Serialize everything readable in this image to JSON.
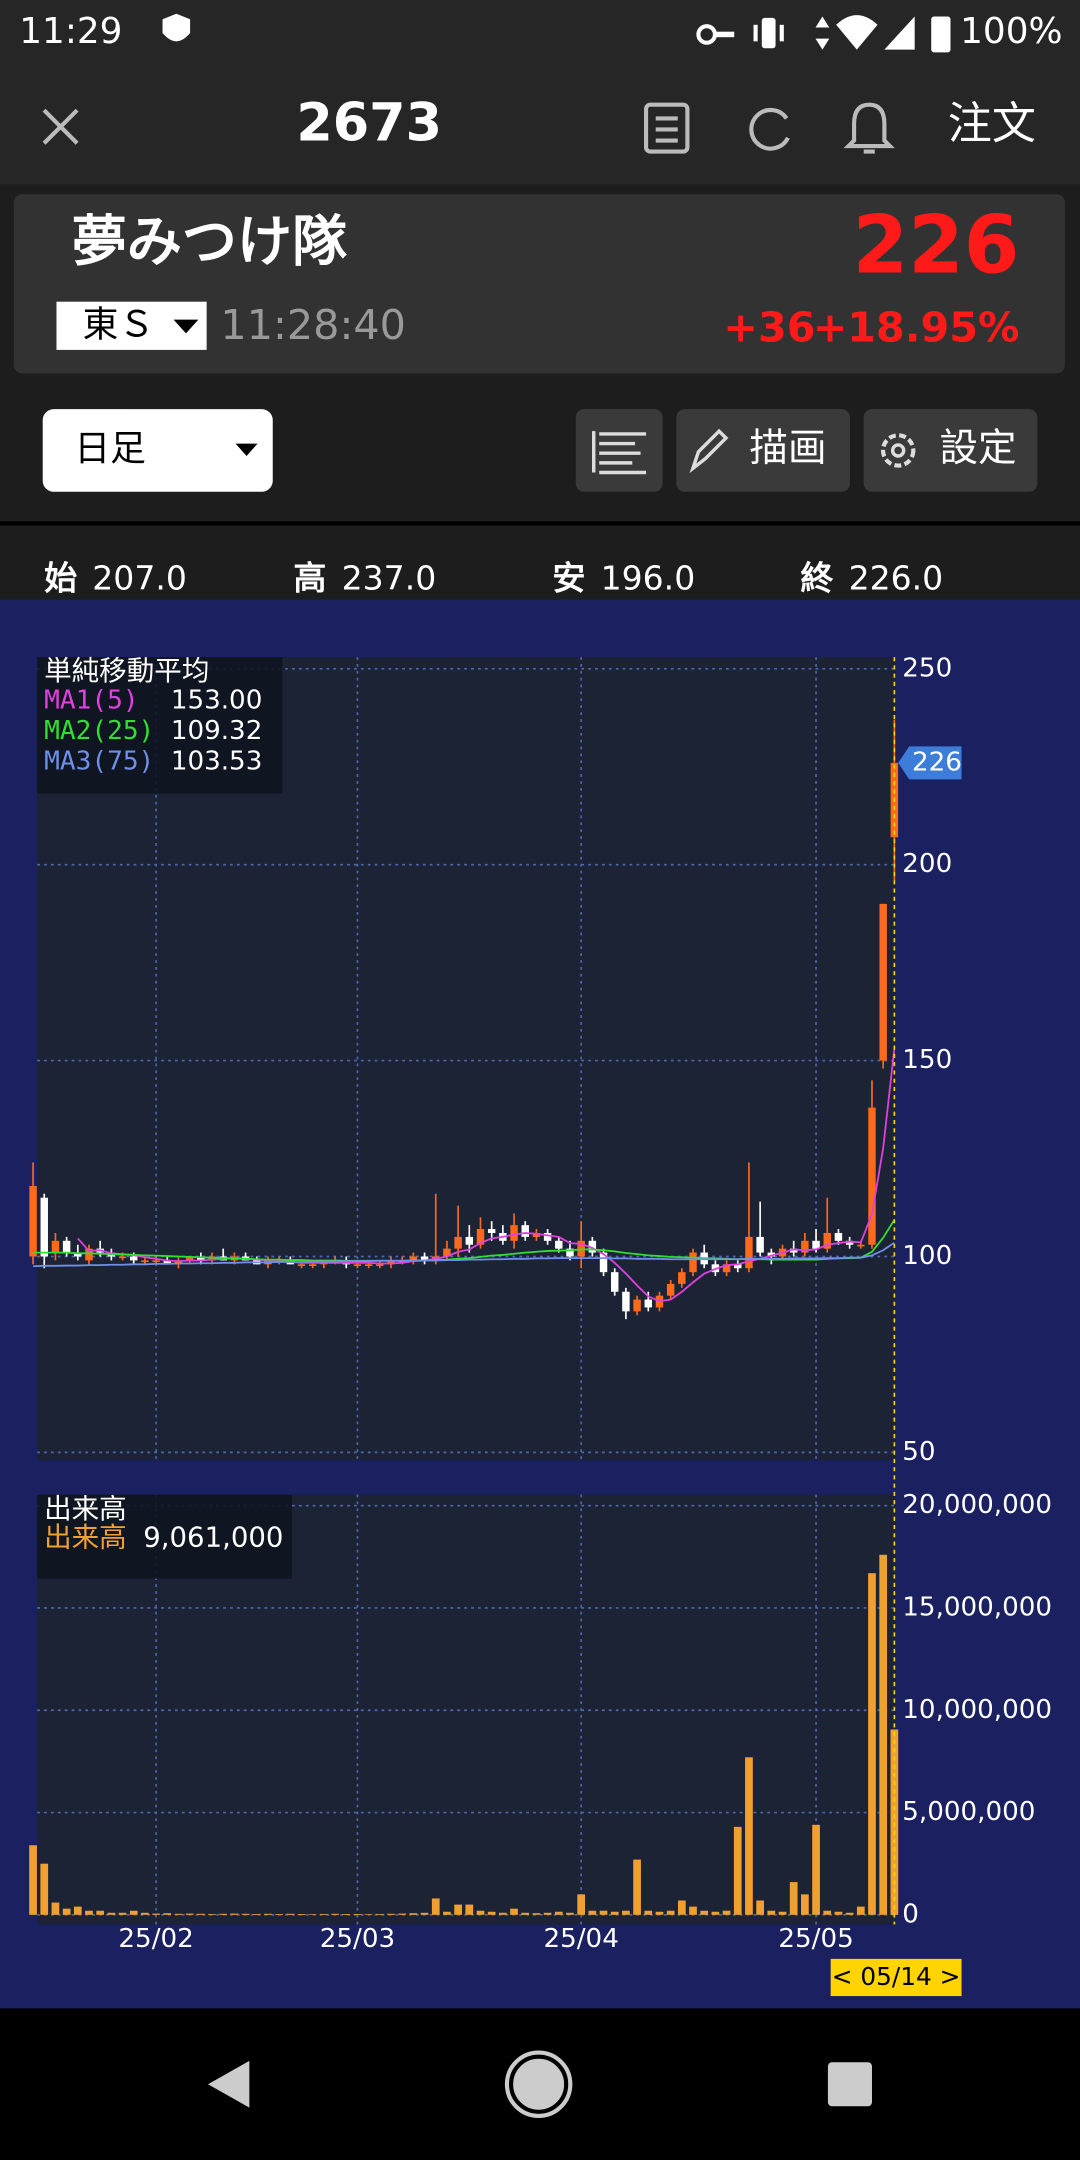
{
  "status_bar": {
    "time": "11:29",
    "battery": "100%"
  },
  "header": {
    "title": "2673",
    "order_button": "注文"
  },
  "quote": {
    "name": "夢みつけ隊",
    "price": "226",
    "market": "東Ｓ",
    "time": "11:28:40",
    "change": "+36",
    "change_percent": "+18.95%"
  },
  "toolbar": {
    "period": "日足",
    "draw": "描画",
    "settings": "設定"
  },
  "ohlc": [
    {
      "label": "始",
      "value": "207.0"
    },
    {
      "label": "高",
      "value": "237.0"
    },
    {
      "label": "安",
      "value": "196.0"
    },
    {
      "label": "終",
      "value": "226.0"
    }
  ],
  "chart_data": [
    {
      "type": "candlestick",
      "title": "単純移動平均",
      "categories": [
        null,
        null,
        null,
        null,
        null,
        null,
        null,
        null,
        null,
        null,
        null,
        "25/02",
        null,
        null,
        null,
        null,
        null,
        null,
        null,
        null,
        null,
        null,
        null,
        null,
        null,
        null,
        null,
        null,
        null,
        "25/03",
        null,
        null,
        null,
        null,
        null,
        null,
        null,
        null,
        null,
        null,
        null,
        null,
        null,
        null,
        null,
        null,
        null,
        null,
        null,
        "25/04",
        null,
        null,
        null,
        null,
        null,
        null,
        null,
        null,
        null,
        null,
        null,
        null,
        null,
        null,
        null,
        null,
        null,
        null,
        null,
        null,
        "25/05",
        null,
        null,
        null,
        null,
        null,
        null,
        null
      ],
      "open": [
        100,
        115,
        101,
        104,
        101,
        99,
        102,
        101,
        100,
        100,
        99,
        99,
        99,
        98,
        99,
        100,
        99,
        100,
        99,
        100,
        99,
        98,
        99,
        99,
        98,
        98,
        98,
        99,
        99,
        98,
        98,
        98,
        98,
        99,
        99,
        100,
        99,
        100,
        102,
        105,
        103,
        107,
        106,
        104,
        108,
        105,
        106,
        104,
        102,
        100,
        104,
        101,
        96,
        91,
        86,
        89,
        87,
        90,
        93,
        96,
        101,
        98,
        96,
        98,
        97,
        105,
        101,
        100,
        102,
        101,
        104,
        102,
        106,
        104,
        103,
        103,
        150,
        207
      ],
      "high": [
        124,
        116,
        106,
        105,
        103,
        103,
        104,
        102,
        101,
        101,
        100,
        100,
        100,
        100,
        100,
        101,
        101,
        102,
        101,
        101,
        100,
        100,
        100,
        100,
        99,
        99,
        99,
        100,
        100,
        99,
        99,
        99,
        100,
        100,
        101,
        101,
        116,
        104,
        113,
        108,
        110,
        109,
        108,
        111,
        109,
        107,
        107,
        105,
        104,
        109,
        105,
        102,
        97,
        92,
        90,
        91,
        91,
        94,
        97,
        102,
        103,
        99,
        99,
        99,
        124,
        114,
        102,
        103,
        104,
        106,
        107,
        115,
        107,
        105,
        104,
        145,
        190,
        237
      ],
      "low": [
        98,
        97,
        99,
        100,
        99,
        98,
        100,
        99,
        99,
        98,
        98,
        98,
        98,
        97,
        98,
        98,
        98,
        99,
        98,
        99,
        98,
        97,
        98,
        98,
        97,
        97,
        97,
        98,
        97,
        97,
        97,
        97,
        97,
        98,
        98,
        98,
        98,
        99,
        100,
        101,
        102,
        104,
        103,
        102,
        104,
        104,
        103,
        101,
        99,
        97,
        100,
        95,
        90,
        84,
        85,
        86,
        86,
        89,
        92,
        95,
        97,
        95,
        95,
        96,
        96,
        100,
        98,
        99,
        100,
        100,
        101,
        101,
        103,
        102,
        102,
        102,
        148,
        196
      ],
      "close": [
        118,
        100,
        104,
        101,
        100,
        102,
        101,
        100,
        100,
        99,
        99,
        99,
        98,
        99,
        100,
        99,
        100,
        99,
        100,
        99,
        98,
        99,
        99,
        98,
        98,
        98,
        99,
        99,
        98,
        98,
        98,
        98,
        99,
        99,
        100,
        99,
        100,
        102,
        105,
        103,
        107,
        106,
        104,
        108,
        105,
        106,
        104,
        102,
        100,
        104,
        101,
        96,
        91,
        86,
        89,
        87,
        90,
        93,
        96,
        101,
        98,
        96,
        98,
        97,
        105,
        101,
        100,
        102,
        101,
        104,
        102,
        106,
        104,
        103,
        103,
        138,
        190,
        226
      ],
      "up_color": "#ff6a1a",
      "down_color": "#ffffff",
      "series": [
        {
          "name": "MA1(5)",
          "color": "#e040e0",
          "value_label": "153.00",
          "values": [
            null,
            null,
            null,
            null,
            104.6,
            101.4,
            101.6,
            100.8,
            100.6,
            100.4,
            99.8,
            99.4,
            99,
            98.8,
            99,
            99,
            99.2,
            99.4,
            99.6,
            99.4,
            99.2,
            99,
            99,
            98.6,
            98.4,
            98.4,
            98.4,
            98.4,
            98.4,
            98.4,
            98.4,
            98.2,
            98.2,
            98.4,
            98.8,
            99,
            99.4,
            100,
            101.2,
            101.8,
            103.4,
            104.6,
            105,
            105.6,
            106,
            105.8,
            105.4,
            105,
            103.4,
            103.2,
            102.2,
            100.6,
            98.4,
            95.6,
            92.6,
            89.8,
            88.6,
            89,
            91,
            93.4,
            95.6,
            96.8,
            97.8,
            98,
            98.8,
            99.4,
            100.2,
            101,
            101.8,
            101.6,
            101.8,
            103,
            103.4,
            103.8,
            103.6,
            110.8,
            127.6,
            153
          ]
        },
        {
          "name": "MA2(25)",
          "color": "#30e030",
          "value_label": "109.32",
          "values": [
            101,
            101,
            101,
            101,
            100.8,
            100.8,
            100.7,
            100.6,
            100.5,
            100.4,
            100.3,
            100.2,
            100.1,
            100,
            99.9,
            99.8,
            99.7,
            99.6,
            99.5,
            99.4,
            99.3,
            99.2,
            99.2,
            99.1,
            99.1,
            99,
            99,
            99,
            98.9,
            98.9,
            98.9,
            98.9,
            98.9,
            98.9,
            99,
            99,
            99.1,
            99.2,
            99.4,
            99.6,
            99.9,
            100.2,
            100.4,
            100.7,
            101,
            101.2,
            101.4,
            101.5,
            101.6,
            101.8,
            101.8,
            101.6,
            101.3,
            100.9,
            100.6,
            100.3,
            100.1,
            99.9,
            99.8,
            99.7,
            99.6,
            99.5,
            99.4,
            99.3,
            99.4,
            99.3,
            99.2,
            99.2,
            99.2,
            99.2,
            99.2,
            99.4,
            99.5,
            99.6,
            99.7,
            101.2,
            104.8,
            109.32
          ]
        },
        {
          "name": "MA3(75)",
          "color": "#6f8fe8",
          "value_label": "103.53",
          "values": [
            97.5,
            97.6,
            97.6,
            97.7,
            97.7,
            97.8,
            97.8,
            97.9,
            97.9,
            98,
            98,
            98.1,
            98.1,
            98.2,
            98.2,
            98.3,
            98.3,
            98.4,
            98.4,
            98.5,
            98.5,
            98.5,
            98.6,
            98.6,
            98.6,
            98.7,
            98.7,
            98.7,
            98.8,
            98.8,
            98.8,
            98.9,
            98.9,
            98.9,
            99,
            99,
            99,
            99.1,
            99.1,
            99.2,
            99.2,
            99.3,
            99.3,
            99.4,
            99.4,
            99.5,
            99.5,
            99.6,
            99.6,
            99.6,
            99.6,
            99.6,
            99.5,
            99.5,
            99.4,
            99.4,
            99.4,
            99.3,
            99.3,
            99.3,
            99.3,
            99.3,
            99.3,
            99.3,
            99.4,
            99.4,
            99.4,
            99.4,
            99.5,
            99.5,
            99.5,
            99.6,
            99.6,
            99.7,
            99.7,
            100.3,
            101.6,
            103.53
          ]
        }
      ],
      "ylim": [
        48,
        253
      ],
      "yticks": [
        50,
        100,
        150,
        200,
        250
      ],
      "grid": true,
      "last_price": 226,
      "cursor_label": "< 05/14 >"
    },
    {
      "type": "bar",
      "title": "出来高",
      "series": [
        {
          "name": "出来高",
          "color": "#f0a030",
          "value_label": "9,061,000",
          "values": [
            3400000,
            2500000,
            600000,
            300000,
            400000,
            200000,
            200000,
            100000,
            100000,
            200000,
            100000,
            60000,
            80000,
            50000,
            60000,
            50000,
            40000,
            50000,
            60000,
            50000,
            40000,
            50000,
            40000,
            50000,
            40000,
            30000,
            40000,
            50000,
            40000,
            40000,
            30000,
            40000,
            50000,
            60000,
            80000,
            100000,
            800000,
            150000,
            500000,
            500000,
            200000,
            150000,
            100000,
            300000,
            100000,
            80000,
            100000,
            150000,
            100000,
            1000000,
            200000,
            200000,
            150000,
            200000,
            2700000,
            200000,
            150000,
            200000,
            700000,
            400000,
            200000,
            150000,
            200000,
            4300000,
            7700000,
            700000,
            200000,
            150000,
            1600000,
            1000000,
            4400000,
            200000,
            150000,
            100000,
            400000,
            16700000,
            17600000,
            9061000
          ]
        }
      ],
      "ylim": [
        -470000,
        20540000
      ],
      "yticks": [
        0,
        {
          "value": 5000000,
          "label": "5,000,000"
        },
        {
          "value": 10000000,
          "label": "10,000,000"
        },
        {
          "value": 15000000,
          "label": "15,000,000"
        },
        {
          "value": 20000000,
          "label": "20,000,000"
        }
      ],
      "grid": true
    }
  ]
}
